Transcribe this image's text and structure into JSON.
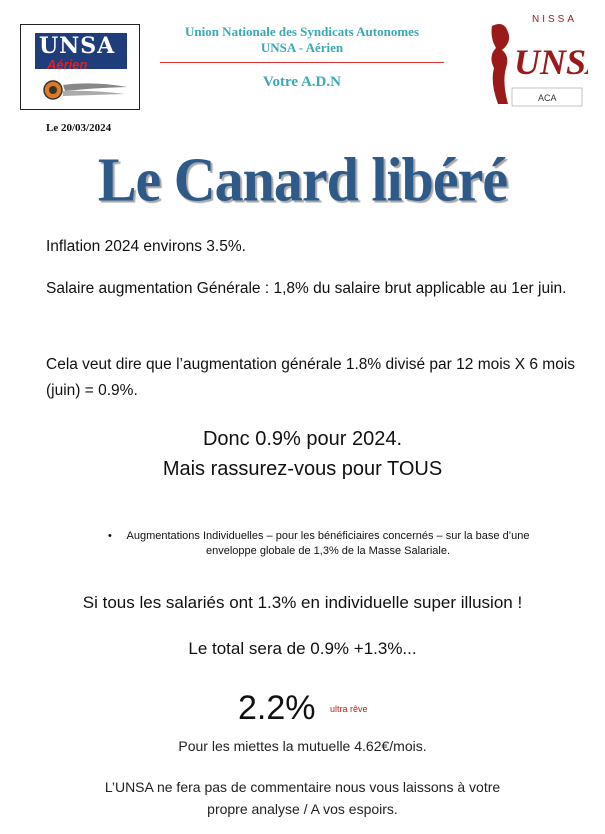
{
  "header": {
    "logo_left": {
      "word": "UNSA",
      "sub": "Aérien"
    },
    "org_name": "Union Nationale des Syndicats Autonomes",
    "org_sub": "UNSA - Aérien",
    "tagline": "Votre A.D.N",
    "logo_right": {
      "top_text": "NISSA",
      "word": "UNSA",
      "bottom_text": "ACA"
    }
  },
  "date": "Le 20/03/2024",
  "headline": "Le Canard libéré",
  "body": {
    "p1": "Inflation 2024 environs 3.5%.",
    "p2": "Salaire augmentation Générale : 1,8% du salaire brut applicable au 1er juin.",
    "p3": "Cela veut dire que l’augmentation générale 1.8% divisé par 12 mois X 6 mois (juin) = 0.9%.",
    "big1": "Donc 0.9% pour 2024.",
    "big2": "Mais rassurez-vous pour TOUS",
    "bullets": [
      "Augmentations Individuelles – pour les bénéficiaires concernés – sur la base d’une enveloppe globale de 1,3% de la Masse Salariale."
    ],
    "m1": "Si tous les salariés ont 1.3% en individuelle super illusion !",
    "m2": "Le total sera de 0.9% +1.3%...",
    "result": "2.2%",
    "result_note": "ultra rêve",
    "mm1": "Pour les miettes la mutuelle 4.62€/mois.",
    "mm2": "L’UNSA ne fera pas de commentaire nous vous laissons à votre",
    "mm3": "propre analyse / A vos espoirs."
  },
  "colors": {
    "headline": "#2e5a8a",
    "org_text": "#3aa8b5",
    "rule": "#e03030",
    "logo_blue": "#1f3d7a",
    "logo_red": "#9a1a1a"
  }
}
